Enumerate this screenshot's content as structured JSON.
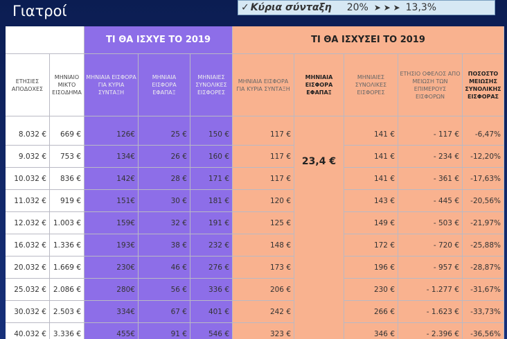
{
  "title": "Γιατροί",
  "badge": {
    "label": "Κύρια σύνταξη",
    "from": "20%",
    "to": "13,3%"
  },
  "table": {
    "group_headers": [
      "ΤΙ ΘΑ ΙΣΧΥΕ ΤΟ 2019",
      "ΤΙ ΘΑ ΙΣΧΥΣΕΙ ΤΟ 2019"
    ],
    "column_headers": [
      "ΕΤΗΣΙΕΣ ΑΠΟΔΟΧΕΣ",
      "ΜΗΝΙΑΙΟ ΜΙΚΤΟ ΕΙΣΟΔΗΜΑ",
      "ΜΗΝΙΑΙΑ ΕΙΣΦΟΡΑ ΓΙΑ ΚΥΡΙΑ ΣΥΝΤΑΞΗ",
      "ΜΗΝΙΑΙΑ ΕΙΣΦΟΡΑ ΕΦΑΠΑΞ",
      "ΜΗΝΙΑΙΕΣ ΣΥΝΟΛΙΚΕΣ ΕΙΣΦΟΡΕΣ",
      "ΜΗΝΙΑΙΑ ΕΙΣΦΟΡΑ ΓΙΑ ΚΥΡΙΑ ΣΥΝΤΑΞΗ",
      "ΜΗΝΙΑΙΑ ΕΙΣΦΟΡΑ ΕΦΑΠΑΞ",
      "ΜΗΝΙΑΙΕΣ ΣΥΝΟΛΙΚΕΣ ΕΙΣΦΟΡΕΣ",
      "ΕΤΗΣΙΟ ΟΦΕΛΟΣ ΑΠΟ ΜΕΙΩΣΗ ΤΩΝ ΕΠΙΜΕΡΟΥΣ ΕΙΣΦΟΡΩΝ",
      "ΠΟΣΟΣΤΟ ΜΕΙΩΣΗΣ ΣΥΝΟΛΙΚΗΣ ΕΙΣΦΟΡΑΣ"
    ],
    "merged_value": "23,4 €",
    "rows": [
      [
        "8.032 €",
        "669 €",
        "126€",
        "25 €",
        "150 €",
        "117 €",
        "141 €",
        "- 117 €",
        "-6,47%"
      ],
      [
        "9.032 €",
        "753 €",
        "134€",
        "26 €",
        "160 €",
        "117 €",
        "141 €",
        "- 234 €",
        "-12,20%"
      ],
      [
        "10.032 €",
        "836 €",
        "142€",
        "28 €",
        "171 €",
        "117 €",
        "141 €",
        "- 361 €",
        "-17,63%"
      ],
      [
        "11.032 €",
        "919 €",
        "151€",
        "30 €",
        "181 €",
        "120 €",
        "143 €",
        "- 445 €",
        "-20,56%"
      ],
      [
        "12.032 €",
        "1.003 €",
        "159€",
        "32 €",
        "191 €",
        "125 €",
        "149 €",
        "- 503 €",
        "-21,97%"
      ],
      [
        "16.032 €",
        "1.336 €",
        "193€",
        "38 €",
        "232 €",
        "148 €",
        "172 €",
        "- 720 €",
        "-25,88%"
      ],
      [
        "20.032 €",
        "1.669 €",
        "230€",
        "46 €",
        "276 €",
        "173 €",
        "196 €",
        "- 957 €",
        "-28,87%"
      ],
      [
        "25.032 €",
        "2.086 €",
        "280€",
        "56 €",
        "336 €",
        "206 €",
        "230 €",
        "- 1.277 €",
        "-31,67%"
      ],
      [
        "30.032 €",
        "2.503 €",
        "334€",
        "67 €",
        "401 €",
        "242 €",
        "266 €",
        "- 1.623 €",
        "-33,73%"
      ],
      [
        "40.032 €",
        "3.336 €",
        "455€",
        "91 €",
        "546 €",
        "323 €",
        "346 €",
        "- 2.396 €",
        "-36,56%"
      ]
    ]
  }
}
